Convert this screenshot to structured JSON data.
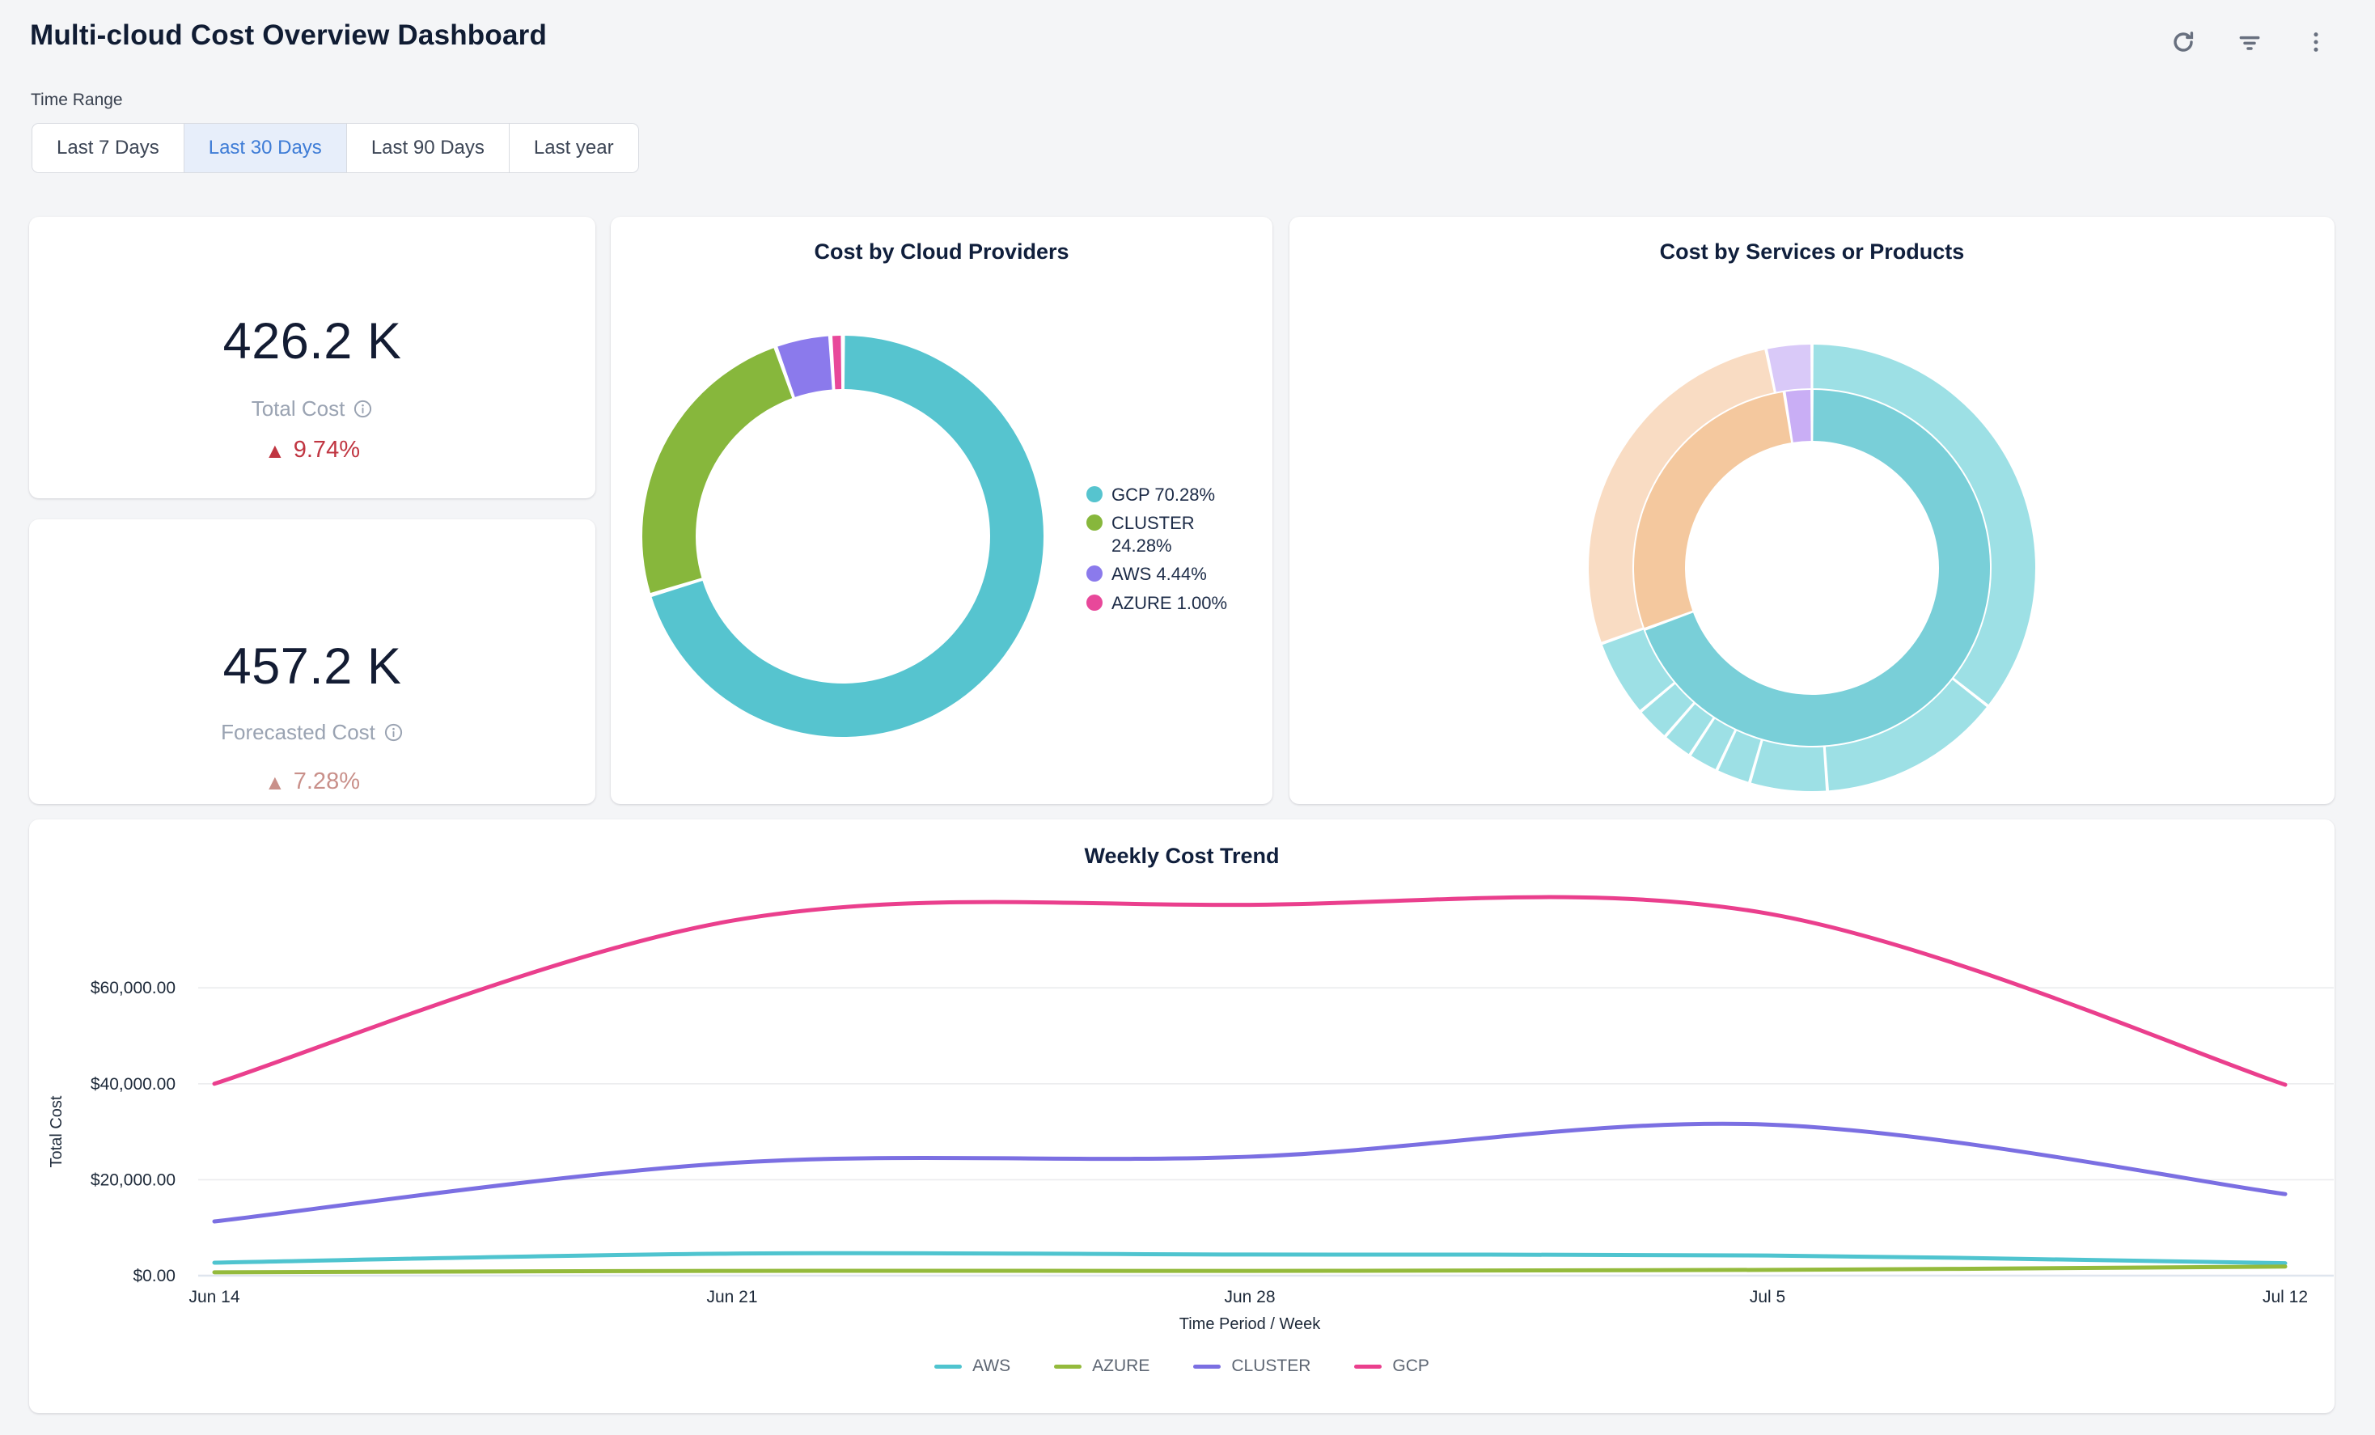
{
  "header": {
    "title": "Multi-cloud Cost Overview Dashboard",
    "icons": [
      "refresh",
      "filter",
      "more-options"
    ]
  },
  "time_range": {
    "label": "Time Range",
    "options": [
      {
        "label": "Last 7 Days",
        "selected": false
      },
      {
        "label": "Last 30 Days",
        "selected": true
      },
      {
        "label": "Last 90 Days",
        "selected": false
      },
      {
        "label": "Last year",
        "selected": false
      }
    ],
    "selected_color": "#3e7cd6",
    "selected_bg": "#e7eefa"
  },
  "stats": [
    {
      "value": "426.2 K",
      "label": "Total Cost",
      "delta": "9.74%",
      "direction": "up",
      "delta_color": "#c03541"
    },
    {
      "value": "457.2 K",
      "label": "Forecasted Cost",
      "delta": "7.28%",
      "direction": "up",
      "delta_color": "#c9908a"
    }
  ],
  "chart_data": [
    {
      "id": "cost_by_cloud_providers",
      "type": "pie",
      "subtype": "donut",
      "title": "Cost by Cloud Providers",
      "labels": [
        "GCP",
        "CLUSTER",
        "AWS",
        "AZURE"
      ],
      "values": [
        70.28,
        24.28,
        4.44,
        1.0
      ],
      "unit": "%",
      "colors": [
        "#56c4cf",
        "#87b73c",
        "#8b7aec",
        "#e8489a"
      ],
      "legend": [
        "GCP 70.28%",
        "CLUSTER 24.28%",
        "AWS 4.44%",
        "AZURE 1.00%"
      ],
      "legend_position": "right"
    },
    {
      "id": "cost_by_services_or_products",
      "type": "sunburst",
      "title": "Cost by Services or Products",
      "note": "two-level ring, no data labels visible",
      "rings": [
        {
          "level": "inner",
          "segments": [
            {
              "color": "#79cfd8",
              "percent": 69.4
            },
            {
              "color": "#f4c89e",
              "percent": 28.1
            },
            {
              "color": "#c9aef5",
              "percent": 2.5
            }
          ]
        },
        {
          "level": "outer",
          "segments": [
            {
              "color": "#9de0e5",
              "percent": 35.6
            },
            {
              "color": "#9de0e5",
              "percent": 13.3
            },
            {
              "color": "#9de0e5",
              "percent": 5.6
            },
            {
              "color": "#9de0e5",
              "percent": 2.5
            },
            {
              "color": "#9de0e5",
              "percent": 2.2
            },
            {
              "color": "#9de0e5",
              "percent": 2.2
            },
            {
              "color": "#9de0e5",
              "percent": 2.5
            },
            {
              "color": "#9de0e5",
              "percent": 5.6
            },
            {
              "color": "#f9dcc3",
              "percent": 27.2
            },
            {
              "color": "#d9c9f8",
              "percent": 3.3
            }
          ]
        }
      ]
    },
    {
      "id": "weekly_cost_trend",
      "type": "line",
      "title": "Weekly Cost Trend",
      "xlabel": "Time Period / Week",
      "ylabel": "Total Cost",
      "categories": [
        "Jun 14",
        "Jun 21",
        "Jun 28",
        "Jul 5",
        "Jul 12"
      ],
      "series": [
        {
          "name": "AWS",
          "color": "#4fc4cf",
          "values": [
            2700,
            4600,
            4400,
            4200,
            2600
          ]
        },
        {
          "name": "AZURE",
          "color": "#94ba3c",
          "values": [
            700,
            1000,
            1000,
            1200,
            1900
          ]
        },
        {
          "name": "CLUSTER",
          "color": "#7b6fe2",
          "values": [
            11300,
            23500,
            24800,
            31500,
            17000
          ]
        },
        {
          "name": "GCP",
          "color": "#ea3f8d",
          "values": [
            40000,
            74000,
            77300,
            75500,
            39800
          ]
        }
      ],
      "ylim": [
        0,
        80000
      ],
      "yticks": [
        {
          "value": 0,
          "label": "$0.00"
        },
        {
          "value": 20000,
          "label": "$20,000.00"
        },
        {
          "value": 40000,
          "label": "$40,000.00"
        },
        {
          "value": 60000,
          "label": "$60,000.00"
        }
      ],
      "grid": true,
      "legend_position": "bottom"
    }
  ]
}
